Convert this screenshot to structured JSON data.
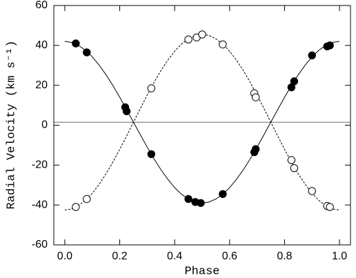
{
  "chart_data": {
    "type": "scatter",
    "x_label": "Phase",
    "y_label": "Radial Velocity (km s⁻¹)",
    "xlim": [
      -0.04,
      1.04
    ],
    "ylim": [
      -60,
      60
    ],
    "xticks": [
      {
        "value": 0,
        "label": "0.0"
      },
      0.2,
      0.4,
      0.6,
      0.8,
      {
        "value": 1,
        "label": "1.0"
      }
    ],
    "yticks": [
      -60,
      -40,
      -20,
      0,
      20,
      40,
      60
    ],
    "hline": 1.5,
    "series": [
      {
        "filled": true,
        "color": "#000000",
        "x": [
          0.04,
          0.08,
          0.22,
          0.225,
          0.315,
          0.45,
          0.475,
          0.495,
          0.575,
          0.69,
          0.695,
          0.825,
          0.835,
          0.9,
          0.955,
          0.965
        ],
        "values": [
          41,
          36.5,
          9,
          7,
          -14.5,
          -37,
          -38.5,
          -39,
          -34.5,
          -13.5,
          -12,
          19,
          22,
          35,
          39.5,
          40
        ]
      },
      {
        "filled": false,
        "color": "#000000",
        "x": [
          0.04,
          0.08,
          0.315,
          0.45,
          0.48,
          0.5,
          0.575,
          0.69,
          0.695,
          0.825,
          0.835,
          0.9,
          0.955,
          0.965
        ],
        "values": [
          -41,
          -37,
          18.5,
          43,
          44,
          45.5,
          40.5,
          16,
          14,
          -17.5,
          -21.5,
          -33,
          -40.5,
          -41
        ]
      }
    ],
    "curves": [
      {
        "dashed": false,
        "x": [
          0,
          0.025,
          0.05,
          0.075,
          0.1,
          0.125,
          0.15,
          0.175,
          0.2,
          0.225,
          0.25,
          0.275,
          0.3,
          0.325,
          0.35,
          0.375,
          0.4,
          0.425,
          0.45,
          0.475,
          0.5,
          0.525,
          0.55,
          0.575,
          0.6,
          0.625,
          0.65,
          0.675,
          0.7,
          0.725,
          0.75,
          0.775,
          0.8,
          0.825,
          0.85,
          0.875,
          0.9,
          0.925,
          0.95,
          0.975,
          1
        ],
        "values": [
          42.0,
          41.5,
          40.0,
          37.6,
          34.3,
          30.1,
          25.3,
          19.9,
          14.0,
          7.8,
          1.5,
          -4.8,
          -11.0,
          -16.9,
          -22.3,
          -27.1,
          -31.3,
          -34.6,
          -37.0,
          -38.5,
          -39.0,
          -38.5,
          -37.0,
          -34.6,
          -31.3,
          -27.1,
          -22.3,
          -16.9,
          -11.0,
          -4.8,
          1.5,
          7.8,
          14.0,
          19.9,
          25.3,
          30.1,
          34.3,
          37.6,
          40.0,
          41.5,
          42.0
        ]
      },
      {
        "dashed": true,
        "x": [
          0,
          0.025,
          0.05,
          0.075,
          0.1,
          0.125,
          0.15,
          0.175,
          0.2,
          0.225,
          0.25,
          0.275,
          0.3,
          0.325,
          0.35,
          0.375,
          0.4,
          0.425,
          0.45,
          0.475,
          0.5,
          0.525,
          0.55,
          0.575,
          0.6,
          0.625,
          0.65,
          0.675,
          0.7,
          0.725,
          0.75,
          0.775,
          0.8,
          0.825,
          0.85,
          0.875,
          0.9,
          0.925,
          0.95,
          0.975,
          1
        ],
        "values": [
          -42.5,
          -42.0,
          -40.3,
          -37.7,
          -34.1,
          -29.6,
          -24.4,
          -18.5,
          -12.1,
          -5.4,
          1.5,
          8.4,
          15.1,
          21.5,
          27.4,
          32.6,
          37.1,
          40.7,
          43.3,
          45.0,
          45.5,
          45.0,
          43.3,
          40.7,
          37.1,
          32.6,
          27.4,
          21.5,
          15.1,
          8.4,
          1.5,
          -5.4,
          -12.1,
          -18.5,
          -24.4,
          -29.6,
          -34.1,
          -37.7,
          -40.3,
          -42.0,
          -42.5
        ]
      }
    ]
  }
}
